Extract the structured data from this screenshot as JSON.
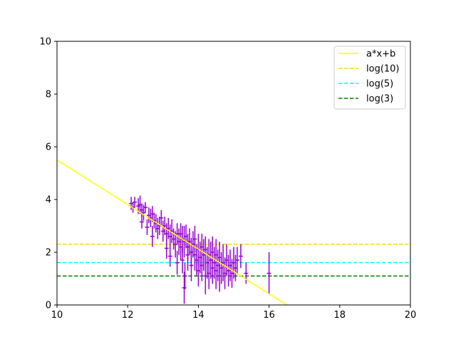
{
  "chart_data": {
    "type": "scatter",
    "title": "",
    "xlabel": "",
    "ylabel": "",
    "xlim": [
      10,
      20
    ],
    "ylim": [
      0,
      10
    ],
    "xticks": [
      "10",
      "12",
      "14",
      "16",
      "18",
      "20"
    ],
    "yticks": [
      "0",
      "2",
      "4",
      "6",
      "8",
      "10"
    ],
    "grid": false,
    "legend_position": "top-right",
    "fit_line": {
      "name": "a*x+b",
      "color": "#ffff00",
      "x": [
        10,
        16.5
      ],
      "y": [
        5.5,
        0.0
      ]
    },
    "hlines": [
      {
        "name": "log(10)",
        "y": 2.3026,
        "color": "#ffd700",
        "style": "dashed"
      },
      {
        "name": "log(5)",
        "y": 1.6094,
        "color": "#00ffff",
        "style": "dashed"
      },
      {
        "name": "log(3)",
        "y": 1.0986,
        "color": "#008000",
        "style": "dashed"
      }
    ],
    "errorbar_series": {
      "color": "#9400d3",
      "points": [
        {
          "x": 12.1,
          "y": 3.85,
          "e": 0.25
        },
        {
          "x": 12.15,
          "y": 3.7,
          "e": 0.2
        },
        {
          "x": 12.2,
          "y": 3.9,
          "e": 0.2
        },
        {
          "x": 12.3,
          "y": 3.75,
          "e": 0.3
        },
        {
          "x": 12.35,
          "y": 3.8,
          "e": 0.35
        },
        {
          "x": 12.4,
          "y": 3.6,
          "e": 0.25
        },
        {
          "x": 12.4,
          "y": 3.15,
          "e": 0.25
        },
        {
          "x": 12.45,
          "y": 3.5,
          "e": 0.3
        },
        {
          "x": 12.5,
          "y": 3.7,
          "e": 0.2
        },
        {
          "x": 12.55,
          "y": 2.95,
          "e": 0.3
        },
        {
          "x": 12.6,
          "y": 3.4,
          "e": 0.3
        },
        {
          "x": 12.65,
          "y": 3.3,
          "e": 0.35
        },
        {
          "x": 12.7,
          "y": 3.45,
          "e": 0.3
        },
        {
          "x": 12.7,
          "y": 2.6,
          "e": 0.4
        },
        {
          "x": 12.75,
          "y": 3.2,
          "e": 0.3
        },
        {
          "x": 12.8,
          "y": 3.1,
          "e": 0.35
        },
        {
          "x": 12.85,
          "y": 2.9,
          "e": 0.4
        },
        {
          "x": 12.9,
          "y": 3.0,
          "e": 0.35
        },
        {
          "x": 12.95,
          "y": 3.3,
          "e": 0.3
        },
        {
          "x": 13.0,
          "y": 2.8,
          "e": 0.4
        },
        {
          "x": 13.05,
          "y": 3.0,
          "e": 0.35
        },
        {
          "x": 13.1,
          "y": 2.7,
          "e": 0.4
        },
        {
          "x": 13.1,
          "y": 2.15,
          "e": 0.4
        },
        {
          "x": 13.15,
          "y": 2.9,
          "e": 0.4
        },
        {
          "x": 13.2,
          "y": 2.6,
          "e": 0.45
        },
        {
          "x": 13.2,
          "y": 1.85,
          "e": 0.4
        },
        {
          "x": 13.25,
          "y": 2.8,
          "e": 0.45
        },
        {
          "x": 13.3,
          "y": 2.5,
          "e": 0.4
        },
        {
          "x": 13.35,
          "y": 2.3,
          "e": 0.5
        },
        {
          "x": 13.4,
          "y": 2.7,
          "e": 0.4
        },
        {
          "x": 13.4,
          "y": 1.6,
          "e": 0.45
        },
        {
          "x": 13.45,
          "y": 2.4,
          "e": 0.5
        },
        {
          "x": 13.5,
          "y": 2.2,
          "e": 0.5
        },
        {
          "x": 13.5,
          "y": 2.7,
          "e": 0.4
        },
        {
          "x": 13.55,
          "y": 2.5,
          "e": 0.5
        },
        {
          "x": 13.55,
          "y": 1.7,
          "e": 0.5
        },
        {
          "x": 13.6,
          "y": 0.65,
          "e": 0.6
        },
        {
          "x": 13.6,
          "y": 2.4,
          "e": 0.6
        },
        {
          "x": 13.62,
          "y": 1.1,
          "e": 0.5
        },
        {
          "x": 13.65,
          "y": 2.6,
          "e": 0.45
        },
        {
          "x": 13.7,
          "y": 2.2,
          "e": 0.5
        },
        {
          "x": 13.7,
          "y": 1.9,
          "e": 0.6
        },
        {
          "x": 13.75,
          "y": 2.4,
          "e": 0.5
        },
        {
          "x": 13.8,
          "y": 2.0,
          "e": 0.55
        },
        {
          "x": 13.8,
          "y": 1.5,
          "e": 0.6
        },
        {
          "x": 13.85,
          "y": 2.3,
          "e": 0.5
        },
        {
          "x": 13.9,
          "y": 1.9,
          "e": 0.6
        },
        {
          "x": 13.9,
          "y": 2.5,
          "e": 0.5
        },
        {
          "x": 13.95,
          "y": 1.7,
          "e": 0.6
        },
        {
          "x": 14.0,
          "y": 2.1,
          "e": 0.6
        },
        {
          "x": 14.0,
          "y": 1.3,
          "e": 0.6
        },
        {
          "x": 14.05,
          "y": 1.8,
          "e": 0.6
        },
        {
          "x": 14.1,
          "y": 2.2,
          "e": 0.5
        },
        {
          "x": 14.1,
          "y": 1.5,
          "e": 0.6
        },
        {
          "x": 14.15,
          "y": 1.9,
          "e": 0.6
        },
        {
          "x": 14.2,
          "y": 1.1,
          "e": 0.7
        },
        {
          "x": 14.2,
          "y": 2.1,
          "e": 0.5
        },
        {
          "x": 14.25,
          "y": 1.6,
          "e": 0.6
        },
        {
          "x": 14.3,
          "y": 1.9,
          "e": 0.6
        },
        {
          "x": 14.3,
          "y": 1.2,
          "e": 0.6
        },
        {
          "x": 14.35,
          "y": 1.7,
          "e": 0.7
        },
        {
          "x": 14.4,
          "y": 1.4,
          "e": 0.6
        },
        {
          "x": 14.4,
          "y": 2.0,
          "e": 0.6
        },
        {
          "x": 14.45,
          "y": 1.6,
          "e": 0.6
        },
        {
          "x": 14.5,
          "y": 1.3,
          "e": 0.7
        },
        {
          "x": 14.5,
          "y": 1.9,
          "e": 0.6
        },
        {
          "x": 14.55,
          "y": 1.5,
          "e": 0.6
        },
        {
          "x": 14.6,
          "y": 1.1,
          "e": 0.6
        },
        {
          "x": 14.6,
          "y": 1.8,
          "e": 0.6
        },
        {
          "x": 14.65,
          "y": 1.4,
          "e": 0.6
        },
        {
          "x": 14.7,
          "y": 1.6,
          "e": 0.7
        },
        {
          "x": 14.75,
          "y": 1.2,
          "e": 0.6
        },
        {
          "x": 14.8,
          "y": 1.7,
          "e": 0.6
        },
        {
          "x": 14.85,
          "y": 1.3,
          "e": 0.6
        },
        {
          "x": 14.9,
          "y": 1.5,
          "e": 0.6
        },
        {
          "x": 14.95,
          "y": 1.2,
          "e": 0.55
        },
        {
          "x": 15.0,
          "y": 1.6,
          "e": 0.6
        },
        {
          "x": 15.05,
          "y": 1.4,
          "e": 0.5
        },
        {
          "x": 15.1,
          "y": 1.7,
          "e": 0.5
        },
        {
          "x": 15.2,
          "y": 1.85,
          "e": 0.45
        },
        {
          "x": 15.35,
          "y": 1.2,
          "e": 0.4
        },
        {
          "x": 16.0,
          "y": 1.2,
          "e": 0.8
        }
      ]
    }
  }
}
